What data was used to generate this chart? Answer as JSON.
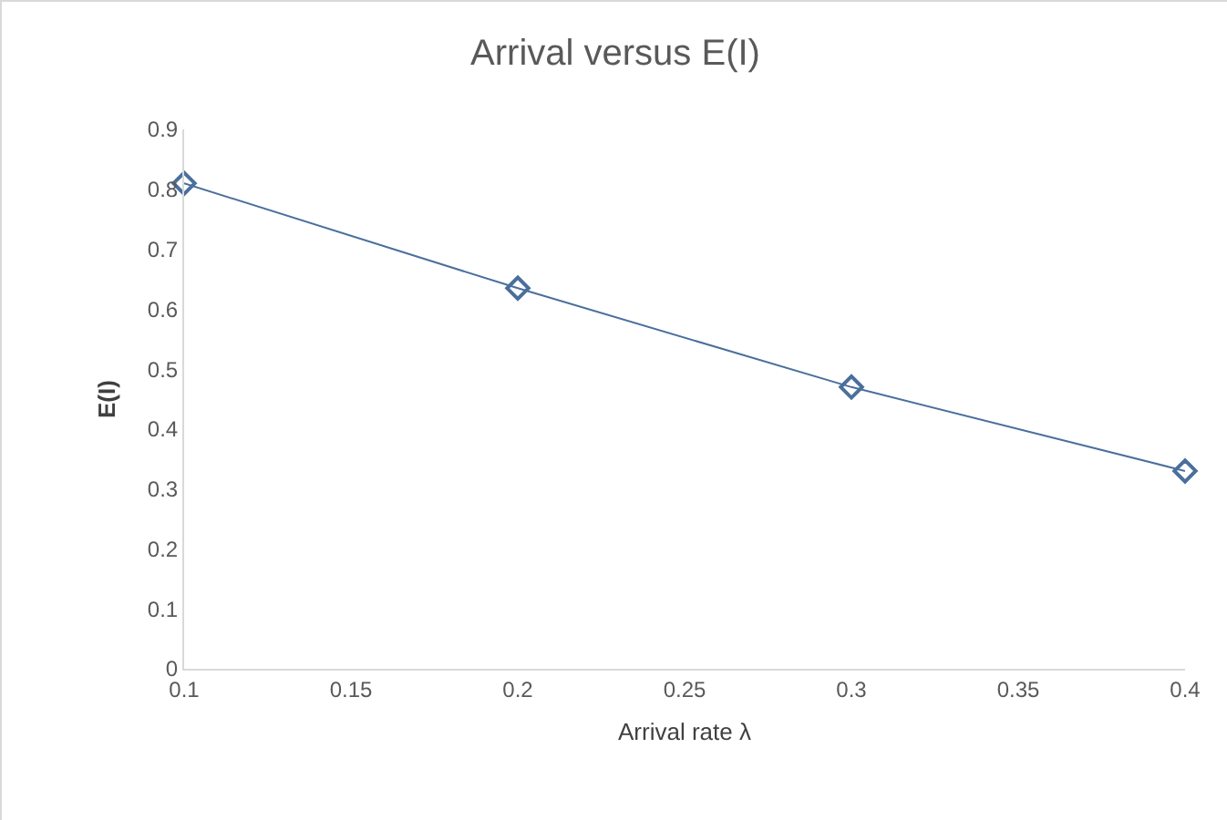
{
  "chart_data": {
    "type": "line",
    "title": "Arrival versus E(I)",
    "xlabel": "Arrival rate λ",
    "ylabel": "E(I)",
    "x": [
      0.1,
      0.2,
      0.3,
      0.4
    ],
    "series": [
      {
        "color": "#4a6f9c",
        "values": [
          0.81,
          0.635,
          0.47,
          0.33
        ]
      }
    ],
    "xlim": [
      0.1,
      0.4
    ],
    "xticks": [
      0.1,
      0.15,
      0.2,
      0.25,
      0.3,
      0.35,
      0.4
    ],
    "ylim": [
      0,
      0.9
    ],
    "yticks": [
      0,
      0.1,
      0.2,
      0.3,
      0.4,
      0.5,
      0.6,
      0.7,
      0.8,
      0.9
    ],
    "grid": false,
    "marker": "diamond",
    "line_style": "solid"
  }
}
